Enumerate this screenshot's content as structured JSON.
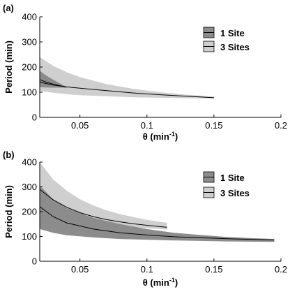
{
  "chart_data": [
    {
      "panel_label": "(a)",
      "type": "area",
      "xlabel_main": "θ (min",
      "xlabel_exp": "-1",
      "xlabel_close": ")",
      "ylabel": "Period (min)",
      "xlim": [
        0.02,
        0.2
      ],
      "ylim": [
        0,
        400
      ],
      "xticks": [
        0.05,
        0.1,
        0.15,
        0.2
      ],
      "xtick_labels": [
        "0.05",
        "0.1",
        "0.15",
        "0.2"
      ],
      "yticks": [
        0,
        100,
        200,
        300,
        400
      ],
      "ytick_labels": [
        "0",
        "100",
        "200",
        "300",
        "400"
      ],
      "legend_position": "top-right",
      "legend": [
        {
          "label": "1 Site",
          "color": "#8c8c8c"
        },
        {
          "label": "3 Sites",
          "color": "#cfcfcf"
        }
      ],
      "series": [
        {
          "name": "3 Sites",
          "color": "#cfcfcf",
          "x": [
            0.02,
            0.03,
            0.04,
            0.05,
            0.07,
            0.09,
            0.11,
            0.13,
            0.15
          ],
          "mean": [
            140,
            129,
            121,
            116,
            106,
            97,
            90,
            84,
            78
          ],
          "upper": [
            240,
            205,
            180,
            160,
            132,
            113,
            100,
            90,
            83
          ],
          "lower": [
            105,
            98,
            92,
            88,
            84,
            80,
            78,
            76,
            75
          ]
        },
        {
          "name": "1 Site",
          "color": "#8c8c8c",
          "x": [
            0.02,
            0.025,
            0.03,
            0.035,
            0.04
          ],
          "mean": [
            150,
            140,
            132,
            126,
            120
          ],
          "upper": [
            185,
            166,
            150,
            135,
            122
          ],
          "lower": [
            120,
            119,
            118,
            118,
            118
          ]
        }
      ]
    },
    {
      "panel_label": "(b)",
      "type": "area",
      "xlabel_main": "θ (min",
      "xlabel_exp": "-1",
      "xlabel_close": ")",
      "ylabel": "Period (min)",
      "xlim": [
        0.02,
        0.2
      ],
      "ylim": [
        0,
        400
      ],
      "xticks": [
        0.05,
        0.1,
        0.15,
        0.2
      ],
      "xtick_labels": [
        "0.05",
        "0.1",
        "0.15",
        "0.2"
      ],
      "yticks": [
        0,
        100,
        200,
        300,
        400
      ],
      "ytick_labels": [
        "0",
        "100",
        "200",
        "300",
        "400"
      ],
      "legend_position": "top-right",
      "legend": [
        {
          "label": "1 Site",
          "color": "#8c8c8c"
        },
        {
          "label": "3 Sites",
          "color": "#cfcfcf"
        }
      ],
      "series": [
        {
          "name": "3 Sites",
          "color": "#cfcfcf",
          "x": [
            0.02,
            0.03,
            0.04,
            0.05,
            0.06,
            0.07,
            0.08,
            0.09,
            0.1,
            0.115
          ],
          "mean": [
            290,
            248,
            218,
            196,
            180,
            168,
            159,
            151,
            145,
            137
          ],
          "upper": [
            400,
            330,
            285,
            250,
            225,
            205,
            190,
            178,
            167,
            155
          ],
          "lower": [
            250,
            215,
            190,
            172,
            160,
            150,
            143,
            137,
            133,
            128
          ]
        },
        {
          "name": "1 Site",
          "color": "#8c8c8c",
          "x": [
            0.02,
            0.03,
            0.04,
            0.06,
            0.08,
            0.1,
            0.12,
            0.14,
            0.16,
            0.18,
            0.195
          ],
          "mean": [
            220,
            180,
            155,
            130,
            115,
            106,
            99,
            95,
            91,
            88,
            86
          ],
          "upper": [
            305,
            250,
            215,
            175,
            150,
            130,
            115,
            106,
            98,
            93,
            90
          ],
          "lower": [
            130,
            115,
            105,
            96,
            90,
            87,
            84,
            82,
            80,
            79,
            78
          ]
        }
      ]
    }
  ]
}
